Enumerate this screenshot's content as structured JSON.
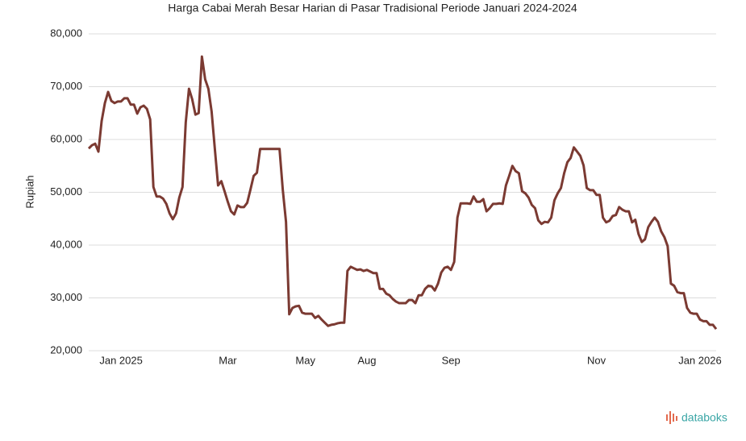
{
  "chart_data": {
    "type": "line",
    "title": "Harga Cabai Merah Besar Harian di Pasar Tradisional Periode Januari 2024-2024",
    "y_label": "Rupiah",
    "watermark": "databoks",
    "color": "#7b3a32",
    "grid": true,
    "ylim": [
      20000,
      80000
    ],
    "yticks": [
      {
        "value": 20000,
        "label": "20,000"
      },
      {
        "value": 30000,
        "label": "30,000"
      },
      {
        "value": 40000,
        "label": "40,000"
      },
      {
        "value": 50000,
        "label": "50,000"
      },
      {
        "value": 60000,
        "label": "60,000"
      },
      {
        "value": 70000,
        "label": "70,000"
      },
      {
        "value": 80000,
        "label": "80,000"
      }
    ],
    "categories": [
      null,
      null,
      null,
      null,
      null,
      null,
      null,
      null,
      null,
      null,
      "Jan 2025",
      null,
      null,
      null,
      null,
      null,
      null,
      null,
      null,
      null,
      null,
      null,
      null,
      null,
      null,
      null,
      null,
      null,
      null,
      null,
      null,
      null,
      null,
      null,
      null,
      null,
      null,
      null,
      null,
      null,
      null,
      null,
      null,
      "Mar",
      null,
      null,
      null,
      null,
      null,
      null,
      null,
      null,
      null,
      null,
      null,
      null,
      null,
      null,
      null,
      null,
      null,
      null,
      null,
      null,
      null,
      null,
      null,
      "May",
      null,
      null,
      null,
      null,
      null,
      null,
      null,
      null,
      null,
      null,
      null,
      null,
      null,
      null,
      null,
      null,
      null,
      null,
      "Aug",
      null,
      null,
      null,
      null,
      null,
      null,
      null,
      null,
      null,
      null,
      null,
      null,
      null,
      null,
      null,
      null,
      null,
      null,
      null,
      null,
      null,
      null,
      null,
      null,
      null,
      "Sep",
      null,
      null,
      null,
      null,
      null,
      null,
      null,
      null,
      null,
      null,
      null,
      null,
      null,
      null,
      null,
      null,
      null,
      null,
      null,
      null,
      null,
      null,
      null,
      null,
      null,
      null,
      null,
      null,
      null,
      null,
      null,
      null,
      null,
      null,
      null,
      null,
      null,
      null,
      null,
      null,
      null,
      null,
      null,
      null,
      "Nov",
      null,
      null,
      null,
      null,
      null,
      null,
      null,
      null,
      null,
      null,
      null,
      null,
      null,
      null,
      null,
      null,
      null,
      null,
      null,
      null,
      null,
      null,
      null,
      null,
      null,
      null,
      null,
      null,
      null,
      null,
      null,
      "Jan 2026",
      null,
      null,
      null,
      null,
      null
    ],
    "values": [
      58300,
      58900,
      59200,
      57700,
      63500,
      66900,
      69000,
      67300,
      66900,
      67200,
      67200,
      67800,
      67800,
      66600,
      66600,
      64900,
      66100,
      66400,
      65800,
      63800,
      51000,
      49200,
      49200,
      48800,
      47800,
      46000,
      44900,
      46000,
      49000,
      51000,
      63200,
      69600,
      67600,
      64700,
      65000,
      75700,
      71400,
      69600,
      65300,
      58200,
      51300,
      52100,
      50200,
      48200,
      46400,
      45800,
      47500,
      47200,
      47200,
      48000,
      50500,
      53100,
      53700,
      58200,
      58200,
      58200,
      58200,
      58200,
      58200,
      58200,
      50500,
      44400,
      26900,
      28100,
      28400,
      28500,
      27200,
      27000,
      27000,
      27000,
      26200,
      26600,
      25900,
      25300,
      24700,
      24900,
      25000,
      25200,
      25300,
      25300,
      35100,
      35900,
      35600,
      35300,
      35400,
      35100,
      35300,
      35000,
      34700,
      34700,
      31700,
      31700,
      30800,
      30500,
      29800,
      29300,
      29000,
      29000,
      29000,
      29600,
      29600,
      29000,
      30500,
      30500,
      31700,
      32300,
      32200,
      31400,
      32700,
      34800,
      35700,
      35900,
      35300,
      36800,
      45200,
      47900,
      47900,
      47900,
      47800,
      49200,
      48200,
      48200,
      48700,
      46400,
      47000,
      47800,
      47800,
      47900,
      47800,
      51300,
      53100,
      55000,
      54000,
      53600,
      50200,
      49800,
      49000,
      47600,
      47000,
      44700,
      44000,
      44400,
      44300,
      45200,
      48500,
      49800,
      50800,
      53600,
      55700,
      56500,
      58500,
      57700,
      56900,
      55100,
      50800,
      50400,
      50400,
      49500,
      49500,
      45200,
      44300,
      44600,
      45500,
      45700,
      47200,
      46700,
      46400,
      46400,
      44300,
      44800,
      42100,
      40600,
      41100,
      43400,
      44400,
      45200,
      44400,
      42600,
      41500,
      39800,
      32700,
      32300,
      31100,
      30900,
      30900,
      28100,
      27200,
      27000,
      27000,
      25900,
      25600,
      25600,
      24900,
      24900,
      24100
    ]
  }
}
